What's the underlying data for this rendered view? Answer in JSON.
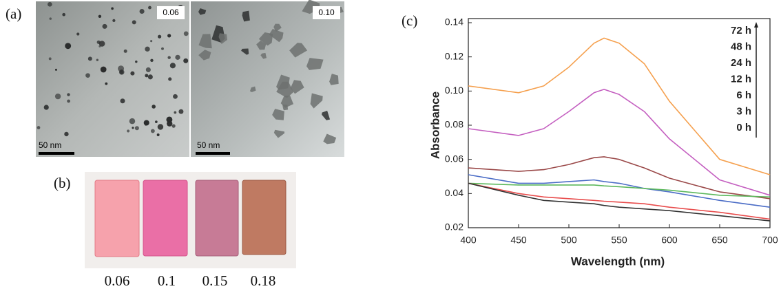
{
  "panels": {
    "a": {
      "label": "(a)",
      "images": [
        {
          "tag": "0.06",
          "scale": "50 nm"
        },
        {
          "tag": "0.10",
          "scale": "50 nm"
        }
      ]
    },
    "b": {
      "label": "(b)",
      "samples": [
        "0.06",
        "0.1",
        "0.15",
        "0.18"
      ]
    },
    "c": {
      "label": "(c)"
    }
  },
  "chart_data": {
    "type": "line",
    "xlabel": "Wavelength (nm)",
    "ylabel": "Absorbance",
    "x": [
      400,
      450,
      475,
      500,
      525,
      535,
      550,
      575,
      600,
      650,
      700
    ],
    "series": [
      {
        "name": "72 h",
        "color": "#f5a04e",
        "values": [
          0.103,
          0.099,
          0.103,
          0.114,
          0.128,
          0.131,
          0.128,
          0.116,
          0.094,
          0.06,
          0.051
        ]
      },
      {
        "name": "48 h",
        "color": "#c45fc0",
        "values": [
          0.078,
          0.074,
          0.078,
          0.088,
          0.099,
          0.101,
          0.098,
          0.088,
          0.072,
          0.048,
          0.039
        ]
      },
      {
        "name": "24 h",
        "color": "#9a4848",
        "values": [
          0.055,
          0.053,
          0.054,
          0.057,
          0.061,
          0.0615,
          0.06,
          0.055,
          0.049,
          0.041,
          0.037
        ]
      },
      {
        "name": "12 h",
        "color": "#4a6cc6",
        "values": [
          0.051,
          0.046,
          0.046,
          0.047,
          0.048,
          0.047,
          0.046,
          0.043,
          0.041,
          0.036,
          0.032
        ]
      },
      {
        "name": "6 h",
        "color": "#5cb85c",
        "values": [
          0.046,
          0.045,
          0.045,
          0.045,
          0.045,
          0.0445,
          0.044,
          0.043,
          0.042,
          0.039,
          0.038
        ]
      },
      {
        "name": "3 h",
        "color": "#e84c4c",
        "values": [
          0.046,
          0.04,
          0.038,
          0.037,
          0.036,
          0.0355,
          0.035,
          0.034,
          0.032,
          0.029,
          0.025
        ]
      },
      {
        "name": "0 h",
        "color": "#333333",
        "values": [
          0.046,
          0.039,
          0.036,
          0.035,
          0.034,
          0.033,
          0.032,
          0.031,
          0.03,
          0.027,
          0.024
        ]
      }
    ],
    "xlim": [
      400,
      700
    ],
    "ylim": [
      0.02,
      0.14
    ],
    "xticks": [
      400,
      450,
      500,
      550,
      600,
      650,
      700
    ],
    "yticks": [
      0.02,
      0.04,
      0.06,
      0.08,
      {
        "value": 0.1,
        "label": "0.10"
      },
      0.12,
      0.14
    ],
    "legend_position": "top-right"
  }
}
